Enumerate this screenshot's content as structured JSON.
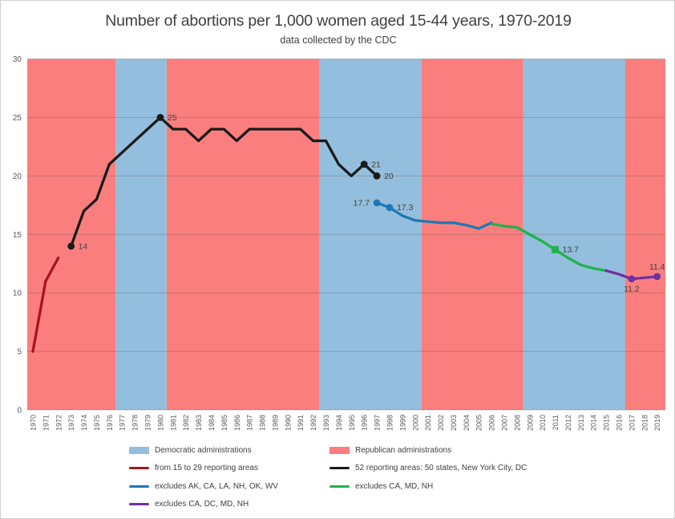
{
  "colors": {
    "democratic": "#94bedd",
    "republican": "#fb7e7e",
    "series_red": "#a5141f",
    "series_black": "#1a1a1a",
    "series_blue": "#2076b4",
    "series_green": "#22b14c",
    "series_purple": "#7030a0",
    "axis_text": "#595959",
    "label_text": "#404040"
  },
  "chart_data": {
    "type": "line",
    "title": "Number of abortions per 1,000 women aged 15-44 years, 1970-2019",
    "subtitle": "data collected by the CDC",
    "xlabel": "",
    "ylabel": "",
    "x_range": [
      1970,
      2019
    ],
    "x_tick_step": 1,
    "ylim": [
      0,
      30
    ],
    "y_ticks": [
      0,
      5,
      10,
      15,
      20,
      25,
      30
    ],
    "grid": true,
    "legend_position": "bottom",
    "background_bands": [
      {
        "party": "republican",
        "from": null,
        "to": 1977
      },
      {
        "party": "democratic",
        "from": 1977,
        "to": 1981
      },
      {
        "party": "republican",
        "from": 1981,
        "to": 1993
      },
      {
        "party": "democratic",
        "from": 1993,
        "to": 2001
      },
      {
        "party": "republican",
        "from": 2001,
        "to": 2009
      },
      {
        "party": "democratic",
        "from": 2009,
        "to": 2017
      },
      {
        "party": "republican",
        "from": 2017,
        "to": null
      }
    ],
    "series": [
      {
        "id": "red",
        "name": "from 15 to 29 reporting areas",
        "color": "#a5141f",
        "years": [
          1970,
          1971,
          1972
        ],
        "values": [
          5,
          11,
          13
        ],
        "marker_shape": "circle",
        "marker_years": []
      },
      {
        "id": "black",
        "name": "52 reporting areas: 50 states, New York City, DC",
        "color": "#1a1a1a",
        "years": [
          1973,
          1974,
          1975,
          1976,
          1977,
          1978,
          1979,
          1980,
          1981,
          1982,
          1983,
          1984,
          1985,
          1986,
          1987,
          1988,
          1989,
          1990,
          1991,
          1992,
          1993,
          1994,
          1995,
          1996,
          1997
        ],
        "values": [
          14,
          17,
          18,
          21,
          22,
          23,
          24,
          25,
          24,
          24,
          23,
          24,
          24,
          23,
          24,
          24,
          24,
          24,
          24,
          23,
          23,
          21,
          20,
          21,
          20
        ],
        "marker_shape": "circle",
        "marker_years": [
          1973,
          1980,
          1996,
          1997
        ]
      },
      {
        "id": "blue",
        "name": "excludes AK, CA, LA, NH, OK, WV",
        "color": "#2076b4",
        "years": [
          1997,
          1998,
          1999,
          2000,
          2001,
          2002,
          2003,
          2004,
          2005,
          2006
        ],
        "values": [
          17.7,
          17.3,
          16.6,
          16.2,
          16.1,
          16.0,
          16.0,
          15.8,
          15.5,
          16.0
        ],
        "marker_shape": "circle",
        "marker_years": [
          1997,
          1998
        ]
      },
      {
        "id": "green",
        "name": "excludes CA, MD, NH",
        "color": "#22b14c",
        "years": [
          2006,
          2007,
          2008,
          2009,
          2010,
          2011,
          2012,
          2013,
          2014,
          2015
        ],
        "values": [
          15.9,
          15.7,
          15.6,
          15.0,
          14.4,
          13.7,
          13.0,
          12.4,
          12.1,
          11.9
        ],
        "marker_shape": "square",
        "marker_years": [
          2011
        ]
      },
      {
        "id": "purple",
        "name": "excludes CA, DC, MD, NH",
        "color": "#7030a0",
        "years": [
          2015,
          2016,
          2017,
          2018,
          2019
        ],
        "values": [
          11.9,
          11.6,
          11.2,
          11.3,
          11.4
        ],
        "marker_shape": "circle",
        "marker_years": [
          2017,
          2019
        ]
      }
    ],
    "annotations": [
      {
        "series": "black",
        "year": 1973,
        "text": "14",
        "placement": "right"
      },
      {
        "series": "black",
        "year": 1980,
        "text": "25",
        "placement": "right"
      },
      {
        "series": "black",
        "year": 1996,
        "text": "21",
        "placement": "right"
      },
      {
        "series": "black",
        "year": 1997,
        "text": "20",
        "placement": "right"
      },
      {
        "series": "blue",
        "year": 1997,
        "text": "17.7",
        "placement": "left"
      },
      {
        "series": "blue",
        "year": 1998,
        "text": "17.3",
        "placement": "right"
      },
      {
        "series": "green",
        "year": 2011,
        "text": "13.7",
        "placement": "right"
      },
      {
        "series": "purple",
        "year": 2017,
        "text": "11.2",
        "placement": "below"
      },
      {
        "series": "purple",
        "year": 2019,
        "text": "11.4",
        "placement": "above"
      }
    ]
  },
  "legend": {
    "items": [
      {
        "id": "democratic-band",
        "swatch": "area",
        "color": "#94bedd",
        "label": "Democratic administrations"
      },
      {
        "id": "republican-band",
        "swatch": "area",
        "color": "#fb7e7e",
        "label": "Republican administrations"
      },
      {
        "id": "series-red",
        "swatch": "line",
        "color": "#a5141f",
        "label": "from 15 to 29 reporting areas"
      },
      {
        "id": "series-black",
        "swatch": "line",
        "color": "#1a1a1a",
        "label": "52 reporting areas: 50 states, New York City, DC"
      },
      {
        "id": "series-blue",
        "swatch": "line",
        "color": "#2076b4",
        "label": "excludes AK, CA, LA, NH, OK, WV"
      },
      {
        "id": "series-green",
        "swatch": "line",
        "color": "#22b14c",
        "label": "excludes CA, MD, NH"
      },
      {
        "id": "series-purple",
        "swatch": "line",
        "color": "#7030a0",
        "label": "excludes CA, DC, MD, NH"
      }
    ]
  }
}
